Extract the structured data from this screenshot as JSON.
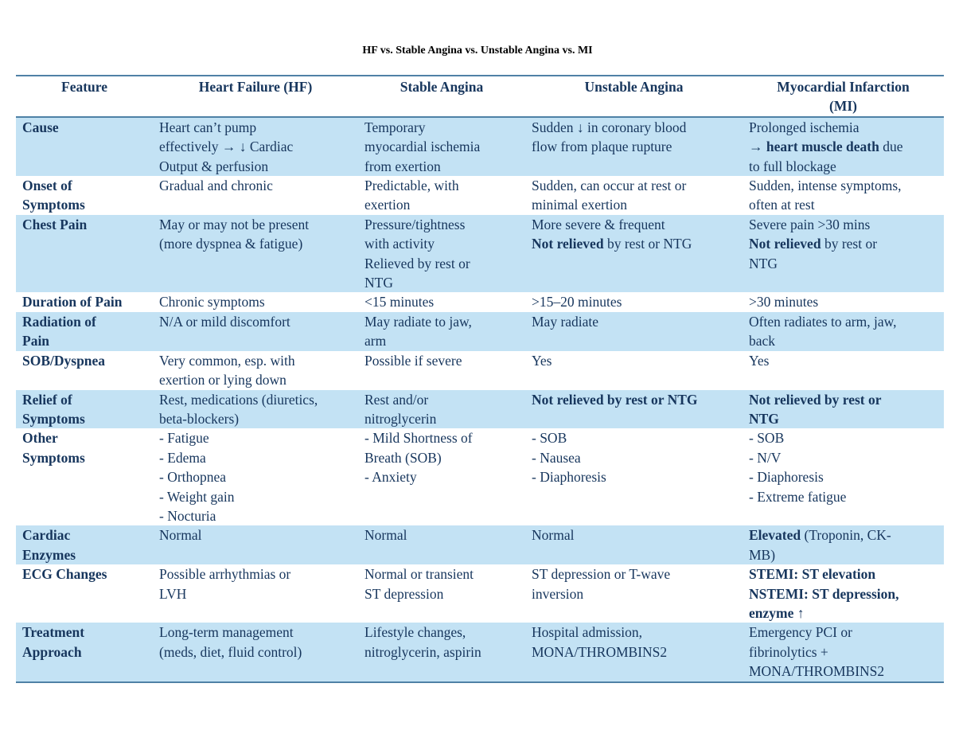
{
  "title": "HF vs. Stable Angina vs. Unstable Angina vs. MI",
  "colors": {
    "band": "#c3e2f4",
    "rule": "#4f81a6",
    "text": "#17365d"
  },
  "headers": [
    "Feature",
    "Heart Failure (HF)",
    "Stable Angina",
    "Unstable Angina",
    "Myocardial Infarction (MI)"
  ],
  "rows": [
    {
      "feature": [
        "Cause"
      ],
      "cells": [
        [
          [
            {
              "t": "Heart can’t pump"
            }
          ],
          [
            {
              "t": "effectively → ↓ Cardiac"
            }
          ],
          [
            {
              "t": "Output & perfusion"
            }
          ]
        ],
        [
          [
            {
              "t": "Temporary"
            }
          ],
          [
            {
              "t": "myocardial ischemia"
            }
          ],
          [
            {
              "t": "from exertion"
            }
          ]
        ],
        [
          [
            {
              "t": "Sudden ↓ in coronary blood"
            }
          ],
          [
            {
              "t": "flow from plaque rupture"
            }
          ]
        ],
        [
          [
            {
              "t": "Prolonged ischemia"
            }
          ],
          [
            {
              "t": "→ "
            },
            {
              "t": "heart muscle death",
              "b": true
            },
            {
              "t": " due"
            }
          ],
          [
            {
              "t": "to full blockage"
            }
          ]
        ]
      ]
    },
    {
      "feature": [
        "Onset of",
        "Symptoms"
      ],
      "cells": [
        [
          [
            {
              "t": "Gradual and chronic"
            }
          ]
        ],
        [
          [
            {
              "t": "Predictable, with"
            }
          ],
          [
            {
              "t": "exertion"
            }
          ]
        ],
        [
          [
            {
              "t": "Sudden, can occur at rest or"
            }
          ],
          [
            {
              "t": "minimal exertion"
            }
          ]
        ],
        [
          [
            {
              "t": "Sudden, intense symptoms,"
            }
          ],
          [
            {
              "t": "often at rest"
            }
          ]
        ]
      ]
    },
    {
      "feature": [
        "Chest Pain"
      ],
      "cells": [
        [
          [
            {
              "t": "May or may not be present"
            }
          ],
          [
            {
              "t": "(more dyspnea & fatigue)"
            }
          ]
        ],
        [
          [
            {
              "t": "Pressure/tightness"
            }
          ],
          [
            {
              "t": "with activity"
            }
          ],
          [
            {
              "t": "Relieved by rest or"
            }
          ],
          [
            {
              "t": "NTG"
            }
          ]
        ],
        [
          [
            {
              "t": "More severe & frequent"
            }
          ],
          [
            {
              "t": "Not relieved",
              "b": true
            },
            {
              "t": " by rest or NTG"
            }
          ]
        ],
        [
          [
            {
              "t": "Severe pain >30 mins"
            }
          ],
          [
            {
              "t": "Not relieved",
              "b": true
            },
            {
              "t": " by rest or"
            }
          ],
          [
            {
              "t": "NTG"
            }
          ]
        ]
      ]
    },
    {
      "feature": [
        "Duration of Pain"
      ],
      "cells": [
        [
          [
            {
              "t": "Chronic symptoms"
            }
          ]
        ],
        [
          [
            {
              "t": "<15 minutes"
            }
          ]
        ],
        [
          [
            {
              "t": ">15–20 minutes"
            }
          ]
        ],
        [
          [
            {
              "t": ">30 minutes"
            }
          ]
        ]
      ]
    },
    {
      "feature": [
        "Radiation of",
        "Pain"
      ],
      "cells": [
        [
          [
            {
              "t": "N/A or mild discomfort"
            }
          ]
        ],
        [
          [
            {
              "t": "May radiate to jaw,"
            }
          ],
          [
            {
              "t": "arm"
            }
          ]
        ],
        [
          [
            {
              "t": "May radiate"
            }
          ]
        ],
        [
          [
            {
              "t": "Often radiates to arm, jaw,"
            }
          ],
          [
            {
              "t": "back"
            }
          ]
        ]
      ]
    },
    {
      "feature": [
        "SOB/Dyspnea"
      ],
      "cells": [
        [
          [
            {
              "t": "Very common, esp. with"
            }
          ],
          [
            {
              "t": "exertion or lying down"
            }
          ]
        ],
        [
          [
            {
              "t": "Possible if severe"
            }
          ]
        ],
        [
          [
            {
              "t": "Yes"
            }
          ]
        ],
        [
          [
            {
              "t": "Yes"
            }
          ]
        ]
      ]
    },
    {
      "feature": [
        "Relief of",
        "Symptoms"
      ],
      "cells": [
        [
          [
            {
              "t": "Rest, medications (diuretics,"
            }
          ],
          [
            {
              "t": "beta-blockers)"
            }
          ]
        ],
        [
          [
            {
              "t": "Rest and/or"
            }
          ],
          [
            {
              "t": "nitroglycerin"
            }
          ]
        ],
        [
          [
            {
              "t": "Not relieved by rest or NTG",
              "b": true
            }
          ]
        ],
        [
          [
            {
              "t": "Not relieved by rest or",
              "b": true
            }
          ],
          [
            {
              "t": "NTG",
              "b": true
            }
          ]
        ]
      ]
    },
    {
      "feature": [
        "Other",
        "Symptoms"
      ],
      "cells": [
        [
          [
            {
              "t": "- Fatigue"
            }
          ],
          [
            {
              "t": "- Edema"
            }
          ],
          [
            {
              "t": "- Orthopnea"
            }
          ],
          [
            {
              "t": "- Weight gain"
            }
          ],
          [
            {
              "t": "- Nocturia"
            }
          ]
        ],
        [
          [
            {
              "t": "- Mild Shortness of"
            }
          ],
          [
            {
              "t": "Breath (SOB)"
            }
          ],
          [
            {
              "t": "- Anxiety"
            }
          ]
        ],
        [
          [
            {
              "t": "- SOB"
            }
          ],
          [
            {
              "t": "- Nausea"
            }
          ],
          [
            {
              "t": "- Diaphoresis"
            }
          ]
        ],
        [
          [
            {
              "t": "- SOB"
            }
          ],
          [
            {
              "t": "- N/V"
            }
          ],
          [
            {
              "t": "- Diaphoresis"
            }
          ],
          [
            {
              "t": "- Extreme fatigue"
            }
          ]
        ]
      ]
    },
    {
      "feature": [
        "Cardiac",
        "Enzymes"
      ],
      "cells": [
        [
          [
            {
              "t": "Normal"
            }
          ]
        ],
        [
          [
            {
              "t": "Normal"
            }
          ]
        ],
        [
          [
            {
              "t": "Normal"
            }
          ]
        ],
        [
          [
            {
              "t": "Elevated",
              "b": true
            },
            {
              "t": " (Troponin, CK-"
            }
          ],
          [
            {
              "t": "MB)"
            }
          ]
        ]
      ]
    },
    {
      "feature": [
        "ECG Changes"
      ],
      "cells": [
        [
          [
            {
              "t": "Possible arrhythmias or"
            }
          ],
          [
            {
              "t": "LVH"
            }
          ]
        ],
        [
          [
            {
              "t": "Normal or transient"
            }
          ],
          [
            {
              "t": "ST depression"
            }
          ]
        ],
        [
          [
            {
              "t": "ST depression or T-wave"
            }
          ],
          [
            {
              "t": "inversion"
            }
          ]
        ],
        [
          [
            {
              "t": "STEMI: ST elevation",
              "b": true
            }
          ],
          [
            {
              "t": "NSTEMI: ST depression,",
              "b": true
            }
          ],
          [
            {
              "t": "enzyme ↑",
              "b": true
            }
          ]
        ]
      ]
    },
    {
      "feature": [
        "Treatment",
        "Approach"
      ],
      "cells": [
        [
          [
            {
              "t": "Long-term management"
            }
          ],
          [
            {
              "t": "(meds, diet, fluid control)"
            }
          ]
        ],
        [
          [
            {
              "t": "Lifestyle changes,"
            }
          ],
          [
            {
              "t": "nitroglycerin, aspirin"
            }
          ]
        ],
        [
          [
            {
              "t": "Hospital admission,"
            }
          ],
          [
            {
              "t": "MONA/THROMBINS2"
            }
          ]
        ],
        [
          [
            {
              "t": "Emergency PCI or"
            }
          ],
          [
            {
              "t": "fibrinolytics +"
            }
          ],
          [
            {
              "t": "MONA/THROMBINS2"
            }
          ]
        ]
      ]
    }
  ]
}
